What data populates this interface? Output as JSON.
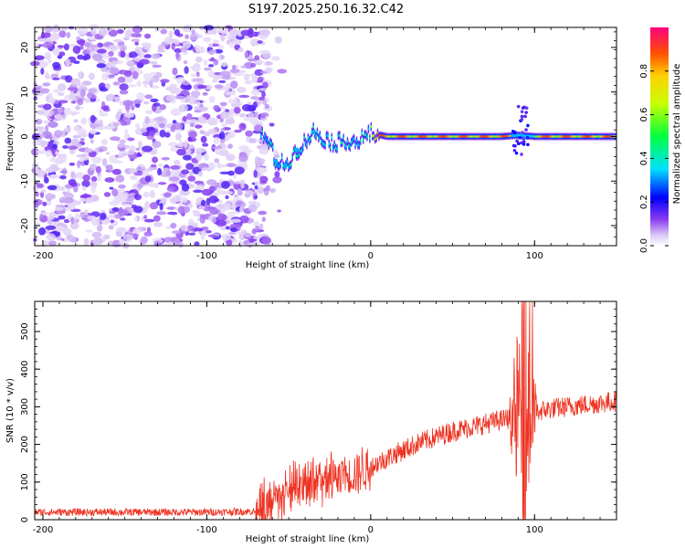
{
  "title": "S197.2025.250.16.32.C42",
  "colors": {
    "snr_line": "#ee3322",
    "axis": "#000000",
    "background": "#ffffff"
  },
  "chart_data": [
    {
      "type": "heatmap",
      "name": "spectrogram",
      "xlabel": "Height of straight line (km)",
      "ylabel": "Frequency (Hz)",
      "xlim": [
        -205,
        150
      ],
      "ylim": [
        -24.5,
        24.5
      ],
      "x_ticks": [
        -200,
        -100,
        0,
        100
      ],
      "x_tick_labels": [
        "-200",
        "-100",
        "0",
        "100"
      ],
      "y_ticks": [
        -20,
        -10,
        0,
        10,
        20
      ],
      "y_tick_labels": [
        "-20",
        "-10",
        "0",
        "10",
        "20"
      ],
      "signal_track": [
        {
          "x": -67,
          "f": 0.5
        },
        {
          "x": -62,
          "f": -1.5
        },
        {
          "x": -58,
          "f": -5.5
        },
        {
          "x": -52,
          "f": -6.5
        },
        {
          "x": -47,
          "f": -4.0
        },
        {
          "x": -42,
          "f": -2.0
        },
        {
          "x": -35,
          "f": 1.0
        },
        {
          "x": -28,
          "f": -0.5
        },
        {
          "x": -22,
          "f": -1.5
        },
        {
          "x": -15,
          "f": -0.8
        },
        {
          "x": -8,
          "f": -1.2
        },
        {
          "x": 0,
          "f": 0.8
        },
        {
          "x": 10,
          "f": 0.0
        },
        {
          "x": 40,
          "f": 0.0
        },
        {
          "x": 80,
          "f": 0.0
        },
        {
          "x": 90,
          "f": 0.3
        },
        {
          "x": 100,
          "f": 0.0
        },
        {
          "x": 150,
          "f": 0.0
        }
      ],
      "noise_region": [
        -205,
        -62
      ],
      "colorbar": {
        "label": "Normalized spectral amplitude",
        "range": [
          0.0,
          1.0
        ],
        "ticks": [
          0.0,
          0.2,
          0.4,
          0.6,
          0.8
        ],
        "tick_labels": [
          "0.0",
          "0.2",
          "0.4",
          "0.6",
          "0.8"
        ]
      }
    },
    {
      "type": "line",
      "name": "snr",
      "xlabel": "Height of straight line (km)",
      "ylabel": "SNR (10 * v/v)",
      "xlim": [
        -205,
        150
      ],
      "ylim": [
        0,
        580
      ],
      "x_ticks": [
        -200,
        -100,
        0,
        100
      ],
      "x_tick_labels": [
        "-200",
        "-100",
        "0",
        "100"
      ],
      "y_ticks": [
        0,
        100,
        200,
        300,
        400,
        500
      ],
      "y_tick_labels": [
        "0",
        "100",
        "200",
        "300",
        "400",
        "500"
      ],
      "trend": [
        {
          "x": -205,
          "y": 20
        },
        {
          "x": -150,
          "y": 20
        },
        {
          "x": -100,
          "y": 20
        },
        {
          "x": -70,
          "y": 22
        },
        {
          "x": -60,
          "y": 40
        },
        {
          "x": -45,
          "y": 75
        },
        {
          "x": -30,
          "y": 95
        },
        {
          "x": -15,
          "y": 115
        },
        {
          "x": 0,
          "y": 140
        },
        {
          "x": 15,
          "y": 175
        },
        {
          "x": 30,
          "y": 205
        },
        {
          "x": 50,
          "y": 235
        },
        {
          "x": 70,
          "y": 255
        },
        {
          "x": 85,
          "y": 270
        },
        {
          "x": 95,
          "y": 280
        },
        {
          "x": 110,
          "y": 295
        },
        {
          "x": 130,
          "y": 305
        },
        {
          "x": 150,
          "y": 315
        }
      ],
      "spike_region": [
        85,
        101
      ],
      "spike_peak": 580
    }
  ]
}
